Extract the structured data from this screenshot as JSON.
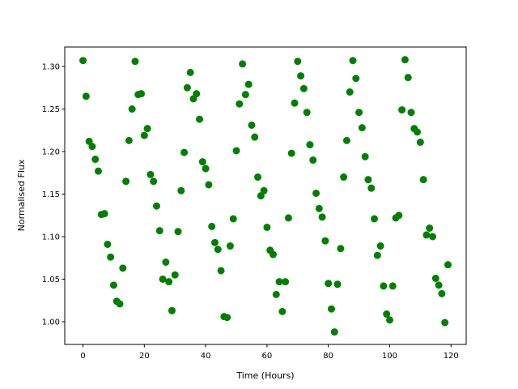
{
  "chart_data": {
    "type": "scatter",
    "xlabel": "Time (Hours)",
    "ylabel": "Normalised Flux",
    "color": "#008000",
    "x": [
      0,
      1,
      2,
      3,
      4,
      5,
      6,
      7,
      8,
      9,
      10,
      11,
      12,
      13,
      14,
      15,
      16,
      17,
      18,
      19,
      20,
      21,
      22,
      23,
      24,
      25,
      26,
      27,
      28,
      29,
      30,
      31,
      32,
      33,
      34,
      35,
      36,
      37,
      38,
      39,
      40,
      41,
      42,
      43,
      44,
      45,
      46,
      47,
      48,
      49,
      50,
      51,
      52,
      53,
      54,
      55,
      56,
      57,
      58,
      59,
      60,
      61,
      62,
      63,
      64,
      65,
      66,
      67,
      68,
      69,
      70,
      71,
      72,
      73,
      74,
      75,
      76,
      77,
      78,
      79,
      80,
      81,
      82,
      83,
      84,
      85,
      86,
      87,
      88,
      89,
      90,
      91,
      92,
      93,
      94,
      95,
      96,
      97,
      98,
      99,
      100,
      101,
      102,
      103,
      104,
      105,
      106,
      107,
      108,
      109,
      110,
      111,
      112,
      113,
      114,
      115,
      116,
      117,
      118,
      119
    ],
    "y": [
      1.307,
      1.265,
      1.212,
      1.206,
      1.191,
      1.177,
      1.126,
      1.127,
      1.091,
      1.076,
      1.043,
      1.024,
      1.021,
      1.063,
      1.165,
      1.213,
      1.25,
      1.306,
      1.267,
      1.268,
      1.219,
      1.227,
      1.173,
      1.165,
      1.136,
      1.107,
      1.05,
      1.07,
      1.047,
      1.013,
      1.055,
      1.106,
      1.154,
      1.199,
      1.275,
      1.293,
      1.262,
      1.268,
      1.238,
      1.188,
      1.18,
      1.161,
      1.112,
      1.093,
      1.085,
      1.06,
      1.006,
      1.005,
      1.089,
      1.121,
      1.201,
      1.256,
      1.303,
      1.267,
      1.279,
      1.231,
      1.217,
      1.17,
      1.148,
      1.154,
      1.111,
      1.084,
      1.079,
      1.032,
      1.047,
      1.012,
      1.047,
      1.122,
      1.198,
      1.257,
      1.306,
      1.289,
      1.274,
      1.246,
      1.208,
      1.19,
      1.151,
      1.133,
      1.123,
      1.095,
      1.045,
      1.015,
      0.988,
      1.044,
      1.086,
      1.17,
      1.213,
      1.27,
      1.307,
      1.286,
      1.246,
      1.228,
      1.194,
      1.167,
      1.157,
      1.121,
      1.078,
      1.089,
      1.042,
      1.009,
      1.002,
      1.042,
      1.122,
      1.125,
      1.249,
      1.308,
      1.287,
      1.246,
      1.227,
      1.223,
      1.211,
      1.167,
      1.102,
      1.11,
      1.1,
      1.051,
      1.043,
      1.033,
      0.999,
      1.067
    ],
    "xlim": [
      -5.95,
      124.95
    ],
    "ylim": [
      0.9733,
      1.3229
    ],
    "xticks": [
      0,
      20,
      40,
      60,
      80,
      100,
      120
    ],
    "yticks": [
      {
        "value": 1.0,
        "label": "1.00"
      },
      1.05,
      {
        "value": 1.1,
        "label": "1.10"
      },
      1.15,
      {
        "value": 1.2,
        "label": "1.20"
      },
      1.25,
      {
        "value": 1.3,
        "label": "1.30"
      }
    ]
  }
}
